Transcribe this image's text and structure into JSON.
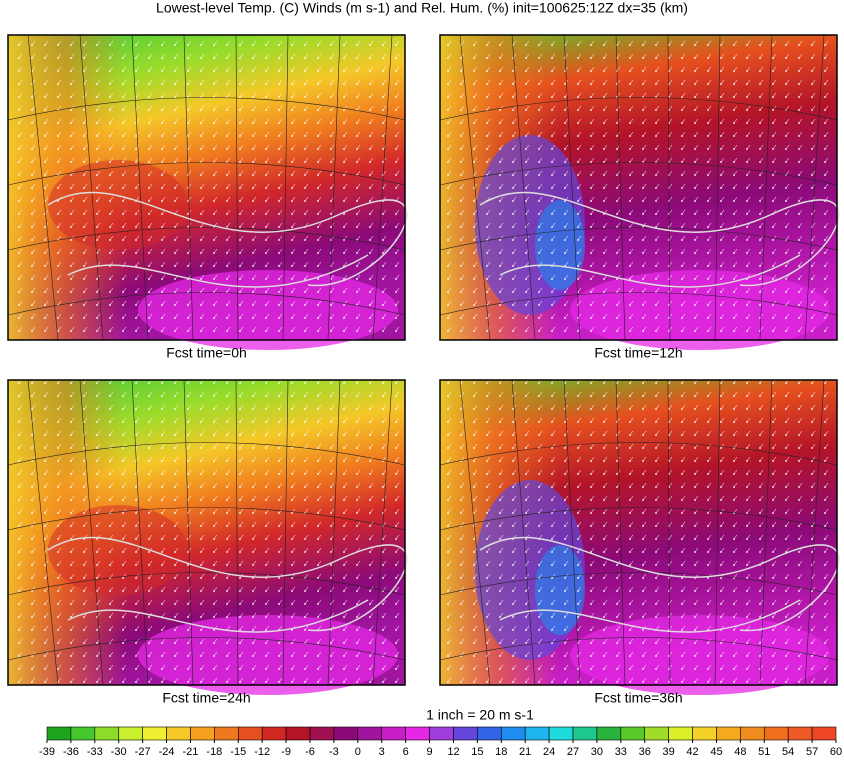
{
  "title": "Lowest-level Temp. (C) Winds (m s-1) and Rel. Hum. (%) init=100625:12Z dx=35 (km)",
  "panels": [
    {
      "label": "Fcst time=0h"
    },
    {
      "label": "Fcst time=12h"
    },
    {
      "label": "Fcst time=24h"
    },
    {
      "label": "Fcst time=36h"
    }
  ],
  "scale_note": "1 inch = 20 m s-1",
  "colorbar": {
    "ticks": [
      -39,
      -36,
      -33,
      -30,
      -27,
      -24,
      -21,
      -18,
      -15,
      -12,
      -9,
      -6,
      -3,
      0,
      3,
      6,
      9,
      12,
      15,
      18,
      21,
      24,
      27,
      30,
      33,
      36,
      39,
      42,
      45,
      48,
      51,
      54,
      57,
      60
    ],
    "colors": [
      "#1ea51e",
      "#46c82d",
      "#8cdc28",
      "#c8f02d",
      "#f0f032",
      "#f5c828",
      "#f5a01e",
      "#f0781e",
      "#e6501e",
      "#d22823",
      "#b41428",
      "#a00f50",
      "#8c0a78",
      "#a014a0",
      "#c81ec8",
      "#e628e6",
      "#a03cdc",
      "#6446dc",
      "#3264e6",
      "#1e8cf0",
      "#1eb4f0",
      "#1edcdc",
      "#1ec88c",
      "#28b43c",
      "#5ac828",
      "#a0dc28",
      "#dcf028",
      "#f5d228",
      "#f5aa1e",
      "#f08c1e",
      "#f06e1e",
      "#f05a28",
      "#f04628"
    ]
  }
}
